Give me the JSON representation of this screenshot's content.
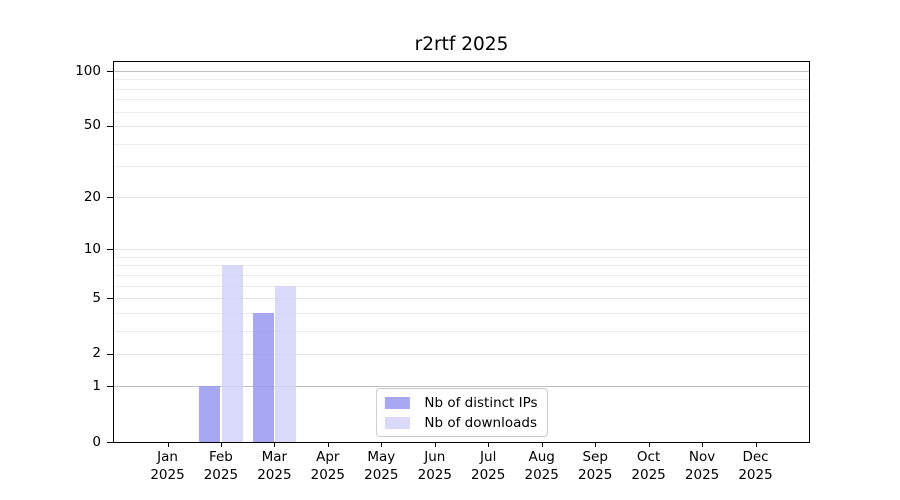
{
  "chart_data": {
    "type": "bar",
    "title": "r2rtf 2025",
    "categories": [
      "Jan 2025",
      "Feb 2025",
      "Mar 2025",
      "Apr 2025",
      "May 2025",
      "Jun 2025",
      "Jul 2025",
      "Aug 2025",
      "Sep 2025",
      "Oct 2025",
      "Nov 2025",
      "Dec 2025"
    ],
    "series": [
      {
        "name": "Nb of distinct IPs",
        "color": "#9c9cf0",
        "opacity": 0.88,
        "values": [
          0,
          1,
          4,
          0,
          0,
          0,
          0,
          0,
          0,
          0,
          0,
          0
        ]
      },
      {
        "name": "Nb of downloads",
        "color": "#d4d4f9",
        "opacity": 0.88,
        "values": [
          0,
          8,
          6,
          0,
          0,
          0,
          0,
          0,
          0,
          0,
          0,
          0
        ]
      }
    ],
    "xlabel": "",
    "ylabel": "",
    "yscale": "log1p",
    "ylim": [
      0,
      112
    ],
    "yticks": [
      0,
      1,
      2,
      5,
      10,
      20,
      50,
      100
    ],
    "minor_gridlines": [
      3,
      4,
      6,
      7,
      8,
      9,
      30,
      40,
      60,
      70,
      80,
      90
    ],
    "emphasized_gridlines": [
      1,
      100
    ],
    "grid": true,
    "legend_position": "lower center",
    "gridline_colors": {
      "emphasized": "#c0c0c0",
      "major": "#e3e3e3",
      "minor": "#ececec"
    }
  }
}
